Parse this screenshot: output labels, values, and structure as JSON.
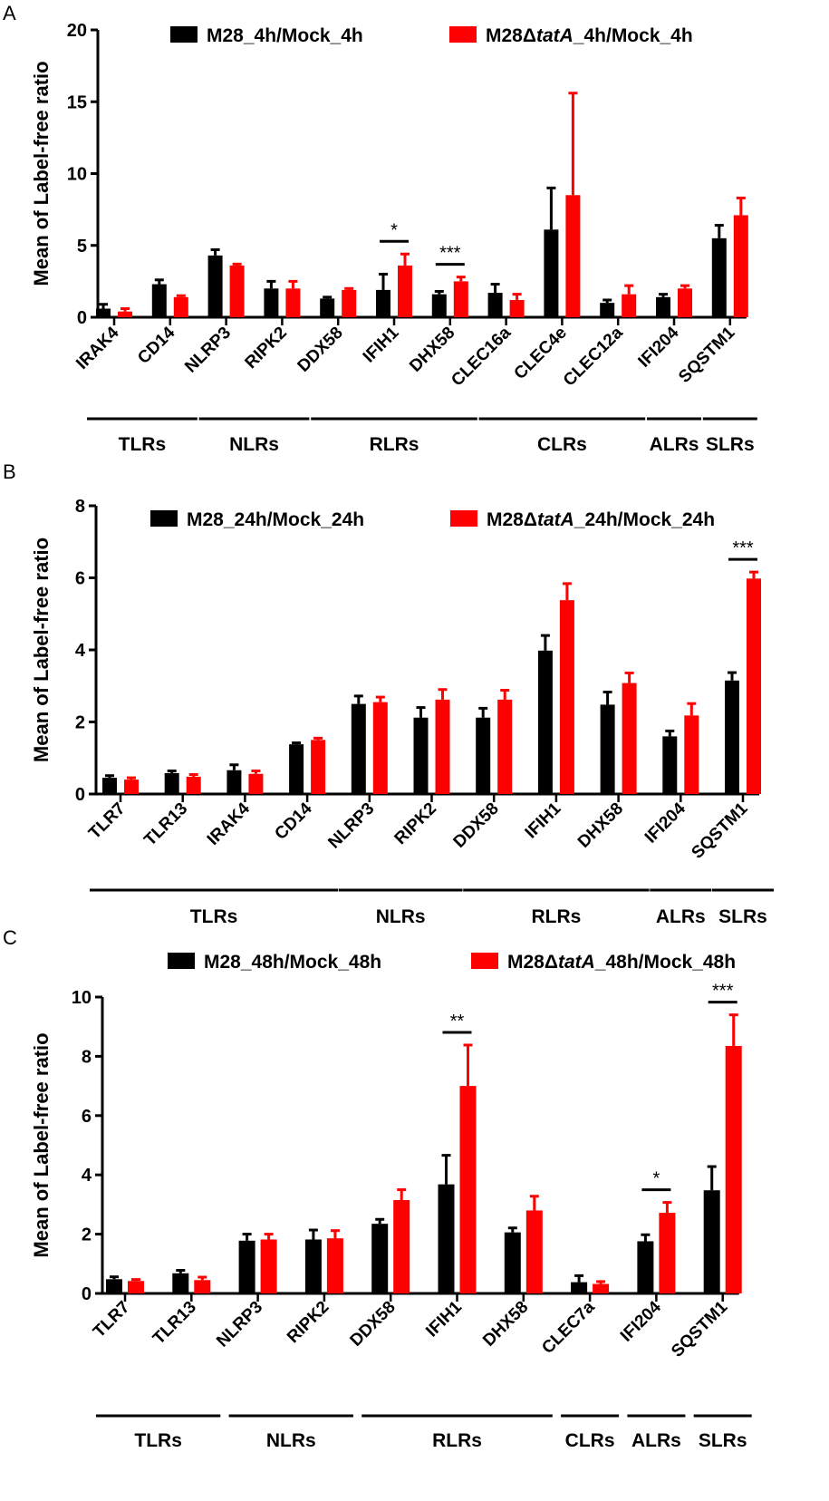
{
  "colors": {
    "series1": "#000000",
    "series2": "#ff0000",
    "axis": "#000000"
  },
  "chart_data": [
    {
      "panel": "A",
      "type": "bar",
      "ylabel": "Mean of Label-free ratio",
      "ylim": [
        0,
        20
      ],
      "yticks": [
        0,
        5,
        10,
        15,
        20
      ],
      "legend": [
        "M28_4h/Mock_4h",
        "M28ΔtatA_4h/Mock_4h"
      ],
      "categories": [
        "IRAK4",
        "CD14",
        "NLRP3",
        "RIPK2",
        "DDX58",
        "IFIH1",
        "DHX58",
        "CLEC16a",
        "CLEC4e",
        "CLEC12a",
        "IFI204",
        "SQSTM1"
      ],
      "series": [
        {
          "name": "M28_4h/Mock_4h",
          "values": [
            0.6,
            2.3,
            4.3,
            2.0,
            1.3,
            1.9,
            1.6,
            1.7,
            6.1,
            1.0,
            1.4,
            5.5
          ],
          "errors": [
            0.3,
            0.3,
            0.4,
            0.5,
            0.1,
            1.1,
            0.2,
            0.6,
            2.9,
            0.2,
            0.2,
            0.9
          ]
        },
        {
          "name": "M28ΔtatA_4h/Mock_4h",
          "values": [
            0.4,
            1.4,
            3.6,
            2.0,
            1.9,
            3.6,
            2.5,
            1.2,
            8.5,
            1.6,
            2.0,
            7.1
          ],
          "errors": [
            0.2,
            0.1,
            0.1,
            0.5,
            0.1,
            0.8,
            0.3,
            0.4,
            7.1,
            0.6,
            0.2,
            1.2
          ]
        }
      ],
      "significance": [
        {
          "index": 5,
          "label": "*"
        },
        {
          "index": 6,
          "label": "***"
        }
      ],
      "groups": [
        {
          "label": "TLRs",
          "from": 0,
          "to": 1
        },
        {
          "label": "NLRs",
          "from": 2,
          "to": 3
        },
        {
          "label": "RLRs",
          "from": 4,
          "to": 6
        },
        {
          "label": "CLRs",
          "from": 7,
          "to": 9
        },
        {
          "label": "ALRs",
          "from": 10,
          "to": 10
        },
        {
          "label": "SLRs",
          "from": 11,
          "to": 11
        }
      ]
    },
    {
      "panel": "B",
      "type": "bar",
      "ylabel": "Mean of Label-free ratio",
      "ylim": [
        0,
        8
      ],
      "yticks": [
        0,
        2,
        4,
        6,
        8
      ],
      "legend": [
        "M28_24h/Mock_24h",
        "M28ΔtatA_24h/Mock_24h"
      ],
      "categories": [
        "TLR7",
        "TLR13",
        "IRAK4",
        "CD14",
        "NLRP3",
        "RIPK2",
        "DDX58",
        "IFIH1",
        "DHX58",
        "IFI204",
        "SQSTM1"
      ],
      "series": [
        {
          "name": "M28_24h/Mock_24h",
          "values": [
            0.45,
            0.58,
            0.66,
            1.38,
            2.5,
            2.12,
            2.12,
            3.98,
            2.48,
            1.6,
            3.15
          ],
          "errors": [
            0.06,
            0.06,
            0.15,
            0.04,
            0.22,
            0.28,
            0.26,
            0.42,
            0.35,
            0.15,
            0.22
          ]
        },
        {
          "name": "M28ΔtatA_24h/Mock_24h",
          "values": [
            0.4,
            0.48,
            0.56,
            1.5,
            2.55,
            2.62,
            2.62,
            5.38,
            3.08,
            2.18,
            5.98
          ],
          "errors": [
            0.05,
            0.06,
            0.08,
            0.05,
            0.14,
            0.28,
            0.26,
            0.46,
            0.28,
            0.33,
            0.18
          ]
        }
      ],
      "significance": [
        {
          "index": 10,
          "label": "***"
        }
      ],
      "groups": [
        {
          "label": "TLRs",
          "from": 0,
          "to": 3
        },
        {
          "label": "NLRs",
          "from": 4,
          "to": 5
        },
        {
          "label": "RLRs",
          "from": 6,
          "to": 8
        },
        {
          "label": "ALRs",
          "from": 9,
          "to": 9
        },
        {
          "label": "SLRs",
          "from": 10,
          "to": 10
        }
      ]
    },
    {
      "panel": "C",
      "type": "bar",
      "ylabel": "Mean of Label-free ratio",
      "ylim": [
        0,
        10
      ],
      "yticks": [
        0,
        2,
        4,
        6,
        8,
        10
      ],
      "legend": [
        "M28_48h/Mock_48h",
        "M28ΔtatA_48h/Mock_48h"
      ],
      "categories": [
        "TLR7",
        "TLR13",
        "NLRP3",
        "RIPK2",
        "DDX58",
        "IFIH1",
        "DHX58",
        "CLEC7a",
        "IFI204",
        "SQSTM1"
      ],
      "series": [
        {
          "name": "M28_48h/Mock_48h",
          "values": [
            0.48,
            0.68,
            1.78,
            1.82,
            2.35,
            3.68,
            2.06,
            0.38,
            1.76,
            3.48
          ],
          "errors": [
            0.08,
            0.1,
            0.22,
            0.32,
            0.15,
            0.98,
            0.15,
            0.22,
            0.22,
            0.8
          ]
        },
        {
          "name": "M28ΔtatA_48h/Mock_48h",
          "values": [
            0.42,
            0.45,
            1.82,
            1.86,
            3.15,
            7.0,
            2.8,
            0.32,
            2.72,
            8.35
          ],
          "errors": [
            0.05,
            0.1,
            0.18,
            0.26,
            0.35,
            1.38,
            0.48,
            0.08,
            0.35,
            1.05
          ]
        }
      ],
      "significance": [
        {
          "index": 5,
          "label": "**"
        },
        {
          "index": 8,
          "label": "*"
        },
        {
          "index": 9,
          "label": "***"
        }
      ],
      "groups": [
        {
          "label": "TLRs",
          "from": 0,
          "to": 1
        },
        {
          "label": "NLRs",
          "from": 2,
          "to": 3
        },
        {
          "label": "RLRs",
          "from": 4,
          "to": 6
        },
        {
          "label": "CLRs",
          "from": 7,
          "to": 7
        },
        {
          "label": "ALRs",
          "from": 8,
          "to": 8
        },
        {
          "label": "SLRs",
          "from": 9,
          "to": 9
        }
      ]
    }
  ]
}
